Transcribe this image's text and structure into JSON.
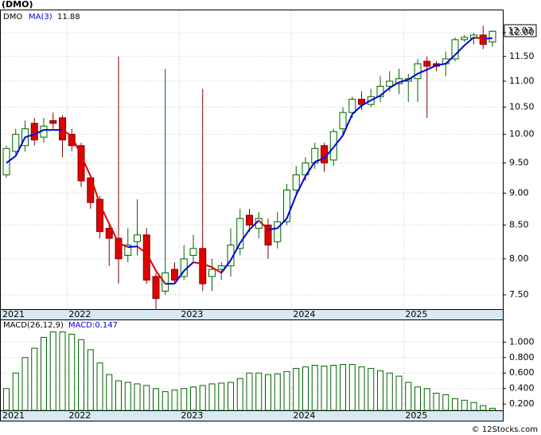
{
  "chart_data": [
    {
      "type": "candlestick",
      "title": "(DMO)",
      "symbol": "DMO",
      "ma_name": "MA(3)",
      "ma_label": "11.88",
      "last_label": "12.03",
      "log_scale": true,
      "grid": true,
      "categories": [
        "2021",
        null,
        null,
        null,
        null,
        null,
        null,
        "2022",
        null,
        null,
        null,
        null,
        null,
        null,
        null,
        null,
        null,
        null,
        null,
        "2023",
        null,
        null,
        null,
        null,
        null,
        null,
        null,
        null,
        null,
        null,
        null,
        "2024",
        null,
        null,
        null,
        null,
        null,
        null,
        null,
        null,
        null,
        null,
        null,
        "2025",
        null,
        null,
        null,
        null,
        null,
        null,
        null,
        null,
        null
      ],
      "open": [
        9.3,
        9.7,
        9.8,
        10.2,
        9.95,
        10.25,
        10.3,
        10.0,
        9.8,
        9.25,
        8.9,
        8.45,
        8.3,
        8.05,
        8.25,
        8.35,
        7.75,
        7.55,
        7.85,
        7.75,
        8.05,
        8.15,
        7.75,
        7.85,
        7.9,
        8.15,
        8.65,
        8.45,
        8.5,
        8.25,
        8.55,
        9.05,
        9.3,
        9.5,
        9.8,
        9.55,
        10.1,
        10.4,
        10.65,
        10.55,
        10.7,
        10.9,
        10.95,
        11.0,
        11.05,
        11.4,
        11.35,
        11.35,
        11.45,
        11.85,
        11.88,
        11.95,
        11.8
      ],
      "high": [
        9.8,
        10.1,
        10.25,
        10.3,
        10.3,
        10.4,
        10.35,
        10.1,
        9.85,
        9.3,
        8.95,
        8.5,
        11.5,
        8.45,
        8.9,
        8.45,
        7.8,
        11.25,
        7.95,
        8.2,
        8.35,
        10.85,
        8.0,
        7.95,
        8.45,
        8.75,
        8.75,
        8.7,
        8.6,
        8.7,
        9.15,
        9.45,
        9.6,
        9.85,
        9.85,
        10.1,
        10.5,
        10.7,
        10.8,
        10.85,
        11.1,
        11.2,
        11.25,
        11.15,
        11.45,
        11.5,
        11.4,
        11.6,
        11.9,
        11.95,
        12.0,
        12.15,
        12.05
      ],
      "low": [
        9.25,
        9.65,
        9.7,
        9.8,
        9.85,
        10.1,
        9.6,
        9.7,
        9.1,
        8.75,
        8.3,
        7.9,
        7.65,
        7.95,
        8.05,
        7.65,
        7.3,
        7.5,
        7.65,
        7.7,
        7.95,
        7.55,
        7.55,
        7.7,
        7.75,
        8.05,
        8.4,
        8.3,
        8.0,
        8.15,
        8.5,
        8.95,
        9.2,
        9.4,
        9.35,
        9.45,
        10.0,
        10.3,
        10.45,
        10.5,
        10.6,
        10.8,
        10.75,
        10.6,
        10.6,
        10.3,
        11.2,
        11.1,
        11.4,
        11.8,
        11.75,
        11.65,
        11.7
      ],
      "close": [
        9.75,
        10.0,
        10.1,
        9.9,
        10.15,
        10.2,
        9.9,
        9.8,
        9.2,
        8.85,
        8.4,
        8.3,
        8.0,
        8.2,
        8.35,
        7.7,
        7.45,
        7.8,
        7.7,
        8.0,
        8.15,
        7.65,
        7.85,
        7.9,
        8.2,
        8.6,
        8.5,
        8.6,
        8.2,
        8.55,
        9.05,
        9.3,
        9.5,
        9.75,
        9.5,
        10.05,
        10.4,
        10.65,
        10.55,
        10.7,
        10.9,
        11.0,
        11.05,
        11.05,
        11.35,
        11.3,
        11.3,
        11.45,
        11.85,
        11.9,
        11.95,
        11.75,
        12.03
      ],
      "ma": [
        9.5,
        9.62,
        9.95,
        10.0,
        10.08,
        10.08,
        10.08,
        9.97,
        9.63,
        9.28,
        8.82,
        8.52,
        8.23,
        8.17,
        8.18,
        8.08,
        7.83,
        7.65,
        7.65,
        7.83,
        7.95,
        7.93,
        7.88,
        7.8,
        7.98,
        8.23,
        8.43,
        8.57,
        8.43,
        8.45,
        8.6,
        8.97,
        9.28,
        9.52,
        9.58,
        9.77,
        9.98,
        10.37,
        10.53,
        10.63,
        10.72,
        10.87,
        10.98,
        11.03,
        11.15,
        11.23,
        11.32,
        11.35,
        11.53,
        11.73,
        11.9,
        11.87,
        11.88
      ],
      "up_color": "#006400",
      "down_color": "#e00000",
      "ma_up_color": "#0000dd",
      "ma_down_color": "#e00000",
      "ylim": [
        7.31,
        12.49
      ],
      "yticks": [
        {
          "value": 7.5,
          "label": "7.50"
        },
        {
          "value": 8,
          "label": "8.00"
        },
        {
          "value": 8.5,
          "label": "8.50"
        },
        {
          "value": 9,
          "label": "9.00"
        },
        {
          "value": 9.5,
          "label": "9.50"
        },
        {
          "value": 10,
          "label": "10.00"
        },
        {
          "value": 10.5,
          "label": "10.50"
        },
        {
          "value": 11,
          "label": "11.00"
        },
        {
          "value": 11.5,
          "label": "11.50"
        },
        {
          "value": 12,
          "label": "12.00"
        }
      ]
    },
    {
      "type": "bar",
      "name": "MACD(26,12,9)",
      "value_label": "MACD:0.147",
      "color": "#006400",
      "grid": true,
      "values": [
        0.4,
        0.6,
        0.8,
        0.92,
        1.06,
        1.13,
        1.13,
        1.1,
        1.03,
        0.9,
        0.73,
        0.58,
        0.5,
        0.48,
        0.46,
        0.44,
        0.4,
        0.36,
        0.38,
        0.4,
        0.42,
        0.44,
        0.46,
        0.47,
        0.48,
        0.53,
        0.6,
        0.6,
        0.58,
        0.59,
        0.62,
        0.66,
        0.68,
        0.7,
        0.69,
        0.7,
        0.71,
        0.71,
        0.68,
        0.66,
        0.63,
        0.6,
        0.56,
        0.48,
        0.42,
        0.4,
        0.34,
        0.32,
        0.27,
        0.25,
        0.22,
        0.18,
        0.147
      ],
      "ylim": [
        0.12,
        1.28
      ],
      "yticks": [
        {
          "value": 0.2,
          "label": "0.200"
        },
        {
          "value": 0.4,
          "label": "0.400"
        },
        {
          "value": 0.6,
          "label": "0.600"
        },
        {
          "value": 0.8,
          "label": "0.800"
        },
        {
          "value": 1.0,
          "label": "1.000"
        }
      ]
    }
  ],
  "footer": "© 12Stocks.com"
}
